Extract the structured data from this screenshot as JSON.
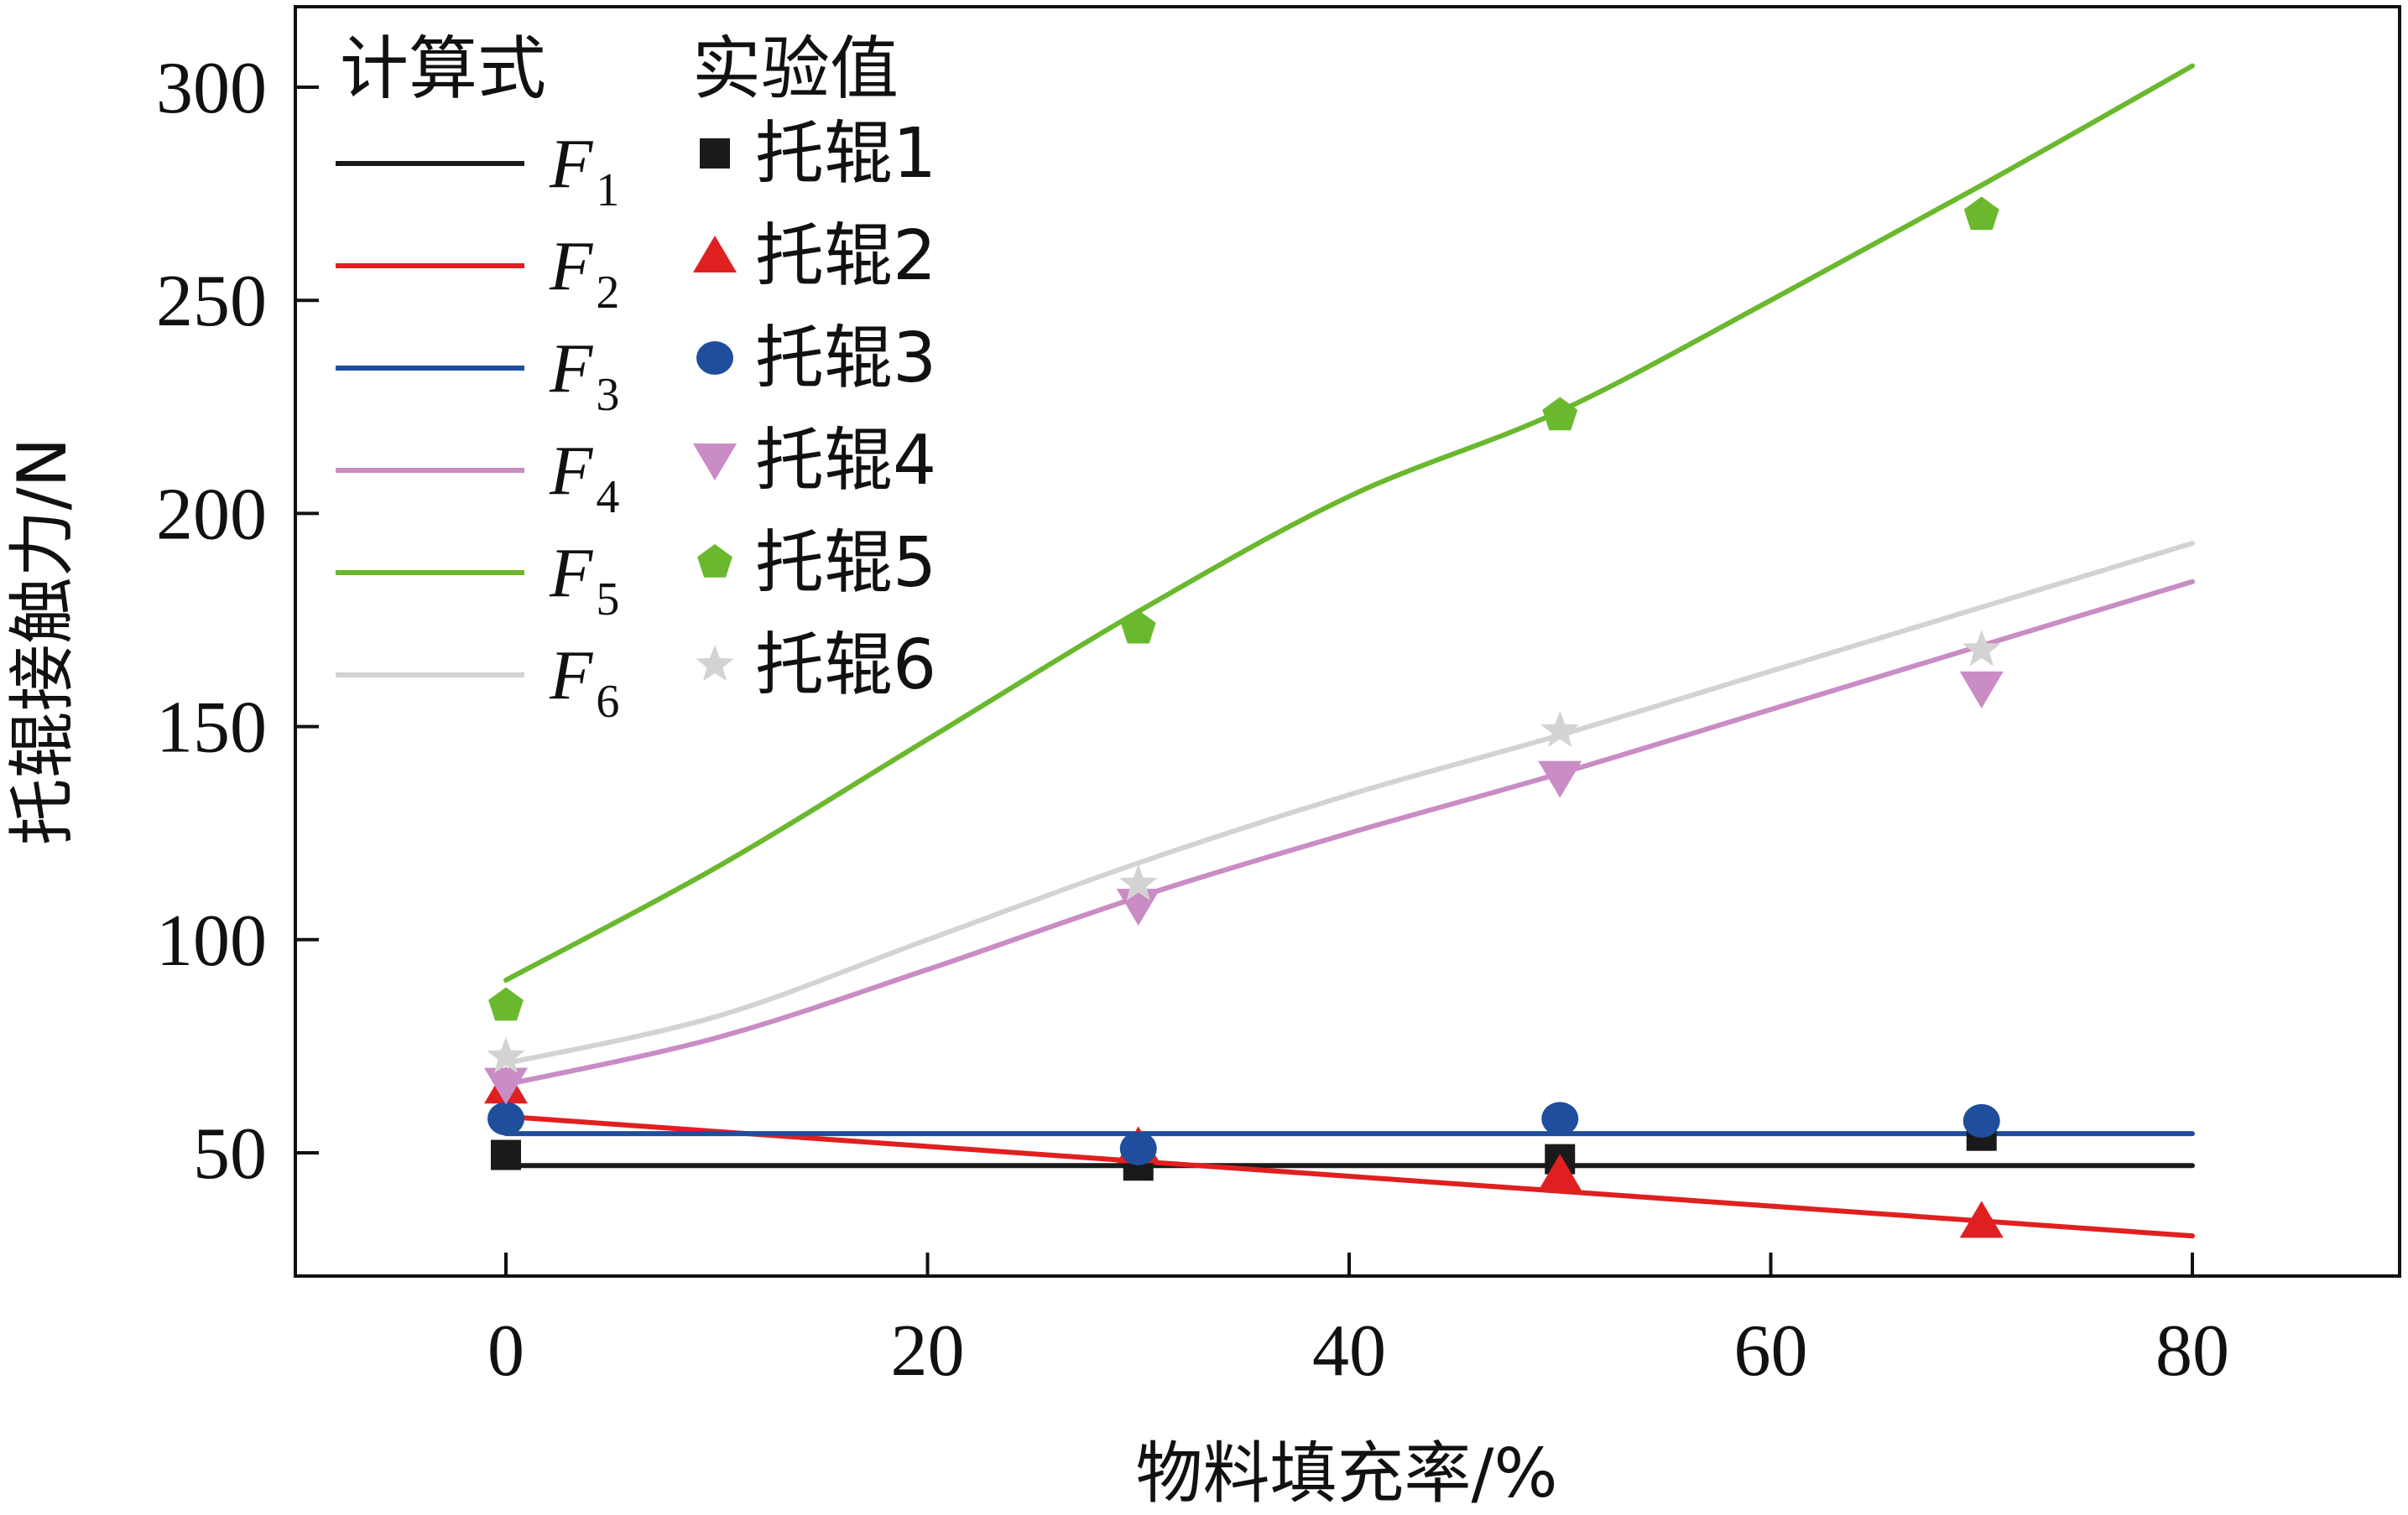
{
  "chart_data": {
    "type": "line",
    "xlabel": "物料填充率/%",
    "ylabel": "托辊接触力/N",
    "xlim": [
      -10,
      90
    ],
    "ylim": [
      30,
      322
    ],
    "xticks": [
      0,
      20,
      40,
      60,
      80
    ],
    "yticks": [
      50,
      100,
      150,
      200,
      250,
      300
    ],
    "xtick_labels": [
      "0",
      "20",
      "40",
      "60",
      "80"
    ],
    "ytick_labels": [
      "50",
      "100",
      "150",
      "200",
      "250",
      "300"
    ],
    "grid": false,
    "legend_position": "top-left",
    "legend": {
      "left_header": "计算式",
      "right_header": "实验值"
    },
    "series": [
      {
        "name": "F1",
        "label_main": "F",
        "label_sub": "1",
        "color": "#1a1a1a",
        "curve_x": [
          0,
          80
        ],
        "curve_y": [
          47,
          47
        ],
        "exp_name": "托辊1",
        "marker": "square",
        "exp_x": [
          0,
          30,
          50,
          70
        ],
        "exp_y": [
          49.5,
          47,
          48.5,
          54
        ]
      },
      {
        "name": "F2",
        "label_main": "F",
        "label_sub": "2",
        "color": "#e02020",
        "curve_x": [
          0,
          80
        ],
        "curve_y": [
          58.5,
          30.5
        ],
        "exp_name": "托辊2",
        "marker": "triangle-up",
        "exp_x": [
          0,
          30,
          50,
          70
        ],
        "exp_y": [
          65.5,
          51.5,
          45,
          34
        ]
      },
      {
        "name": "F3",
        "label_main": "F",
        "label_sub": "3",
        "color": "#1f4e9c",
        "curve_x": [
          0,
          80
        ],
        "curve_y": [
          54.5,
          54.5
        ],
        "exp_name": "托辊3",
        "marker": "circle",
        "exp_x": [
          0,
          30,
          50,
          70
        ],
        "exp_y": [
          58,
          51,
          58,
          57.5
        ]
      },
      {
        "name": "F4",
        "label_main": "F",
        "label_sub": "4",
        "color": "#c98cc4",
        "curve_x": [
          0,
          10,
          20,
          30,
          40,
          50,
          60,
          70,
          80
        ],
        "curve_y": [
          66,
          77,
          93,
          110,
          125,
          139,
          154,
          169,
          184
        ],
        "exp_name": "托辊4",
        "marker": "triangle-down",
        "exp_x": [
          0,
          30,
          50,
          70
        ],
        "exp_y": [
          66,
          108,
          138,
          159
        ]
      },
      {
        "name": "F5",
        "label_main": "F",
        "label_sub": "5",
        "color": "#6ab82e",
        "curve_x": [
          0,
          10,
          20,
          30,
          40,
          50,
          60,
          70,
          80
        ],
        "curve_y": [
          90.5,
          117,
          147,
          177,
          204,
          224,
          250,
          277,
          305
        ],
        "exp_name": "托辊5",
        "marker": "pentagon",
        "exp_x": [
          0,
          30,
          50,
          70
        ],
        "exp_y": [
          84.5,
          173,
          223,
          270
        ]
      },
      {
        "name": "F6",
        "label_main": "F",
        "label_sub": "6",
        "color": "#d3d3d3",
        "curve_x": [
          0,
          10,
          20,
          30,
          40,
          50,
          60,
          70,
          80
        ],
        "curve_y": [
          71,
          82,
          100,
          118,
          134,
          148,
          163,
          178,
          193
        ],
        "exp_name": "托辊6",
        "marker": "star",
        "exp_x": [
          0,
          30,
          50,
          70
        ],
        "exp_y": [
          72.5,
          113,
          149,
          168
        ]
      }
    ]
  }
}
